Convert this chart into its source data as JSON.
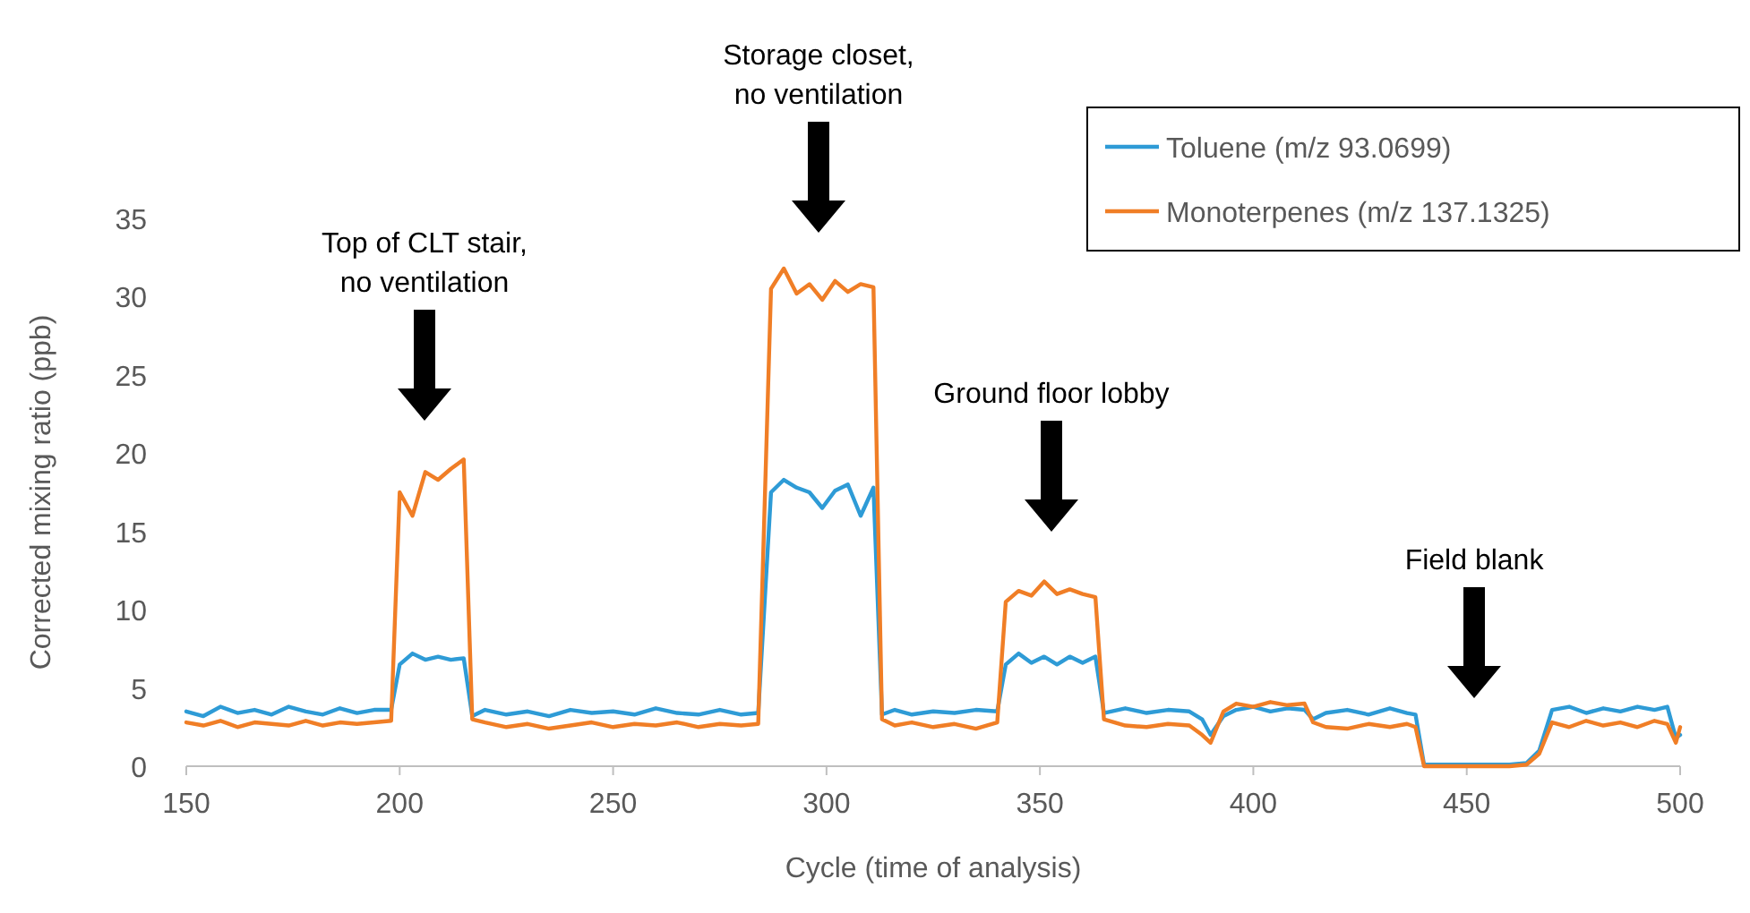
{
  "chart_data": {
    "type": "line",
    "xlabel": "Cycle (time of analysis)",
    "ylabel": "Corrected mixing ratio (ppb)",
    "x": [
      150,
      154,
      158,
      162,
      166,
      170,
      174,
      178,
      182,
      186,
      190,
      194,
      198,
      200,
      203,
      206,
      209,
      212,
      215,
      217,
      220,
      225,
      230,
      235,
      240,
      245,
      250,
      255,
      260,
      265,
      270,
      275,
      280,
      284,
      287,
      290,
      293,
      296,
      299,
      302,
      305,
      308,
      311,
      313,
      316,
      320,
      325,
      330,
      335,
      340,
      342,
      345,
      348,
      351,
      354,
      357,
      360,
      363,
      365,
      370,
      375,
      380,
      385,
      388,
      390,
      393,
      396,
      400,
      404,
      408,
      412,
      414,
      417,
      422,
      427,
      432,
      436,
      438,
      440,
      445,
      450,
      455,
      460,
      464,
      467,
      470,
      474,
      478,
      482,
      486,
      490,
      494,
      497,
      499,
      500
    ],
    "series": [
      {
        "name": "Toluene (m/z 93.0699)",
        "color": "#2e9bd6",
        "values": [
          3.5,
          3.2,
          3.8,
          3.4,
          3.6,
          3.3,
          3.8,
          3.5,
          3.3,
          3.7,
          3.4,
          3.6,
          3.6,
          6.5,
          7.2,
          6.8,
          7.0,
          6.8,
          6.9,
          3.2,
          3.6,
          3.3,
          3.5,
          3.2,
          3.6,
          3.4,
          3.5,
          3.3,
          3.7,
          3.4,
          3.3,
          3.6,
          3.3,
          3.4,
          17.5,
          18.3,
          17.8,
          17.5,
          16.5,
          17.6,
          18.0,
          16.0,
          17.8,
          3.3,
          3.6,
          3.3,
          3.5,
          3.4,
          3.6,
          3.5,
          6.5,
          7.2,
          6.6,
          7.0,
          6.5,
          7.0,
          6.6,
          7.0,
          3.4,
          3.7,
          3.4,
          3.6,
          3.5,
          3.0,
          2.0,
          3.2,
          3.6,
          3.8,
          3.5,
          3.7,
          3.6,
          3.0,
          3.4,
          3.6,
          3.3,
          3.7,
          3.4,
          3.3,
          0.1,
          0.1,
          0.1,
          0.1,
          0.1,
          0.2,
          1.0,
          3.6,
          3.8,
          3.4,
          3.7,
          3.5,
          3.8,
          3.6,
          3.8,
          1.8,
          2.0
        ]
      },
      {
        "name": "Monoterpenes (m/z 137.1325)",
        "color": "#f07e26",
        "values": [
          2.8,
          2.6,
          2.9,
          2.5,
          2.8,
          2.7,
          2.6,
          2.9,
          2.6,
          2.8,
          2.7,
          2.8,
          2.9,
          17.5,
          16.0,
          18.8,
          18.3,
          19.0,
          19.6,
          3.0,
          2.8,
          2.5,
          2.7,
          2.4,
          2.6,
          2.8,
          2.5,
          2.7,
          2.6,
          2.8,
          2.5,
          2.7,
          2.6,
          2.7,
          30.5,
          31.8,
          30.2,
          30.8,
          29.8,
          31.0,
          30.3,
          30.8,
          30.6,
          3.0,
          2.6,
          2.8,
          2.5,
          2.7,
          2.4,
          2.8,
          10.5,
          11.2,
          10.9,
          11.8,
          11.0,
          11.3,
          11.0,
          10.8,
          3.0,
          2.6,
          2.5,
          2.7,
          2.6,
          2.0,
          1.5,
          3.5,
          4.0,
          3.8,
          4.1,
          3.9,
          4.0,
          2.8,
          2.5,
          2.4,
          2.7,
          2.5,
          2.7,
          2.5,
          0,
          0,
          0,
          0,
          0,
          0.1,
          0.8,
          2.8,
          2.5,
          2.9,
          2.6,
          2.8,
          2.5,
          2.9,
          2.7,
          1.5,
          2.5
        ]
      }
    ],
    "xlim": [
      150,
      500
    ],
    "xticks": [
      150,
      200,
      250,
      300,
      350,
      400,
      450,
      500
    ],
    "ylim": [
      0,
      35
    ],
    "yticks": [
      0,
      5,
      10,
      15,
      20,
      25,
      30,
      35
    ],
    "grid": false,
    "legend": "top right",
    "marker": "none",
    "line_style": "solid",
    "annotations": [
      "Top of CLT stair,\nno ventilation",
      "Storage closet,\nno ventilation",
      "Ground floor lobby",
      "Field blank"
    ]
  }
}
